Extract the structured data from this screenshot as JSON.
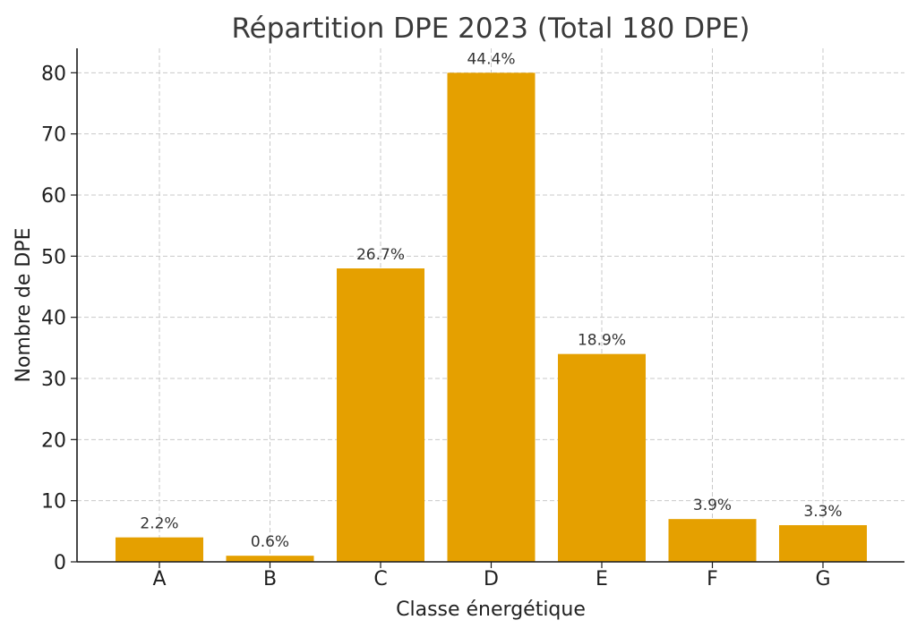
{
  "chart_data": {
    "type": "bar",
    "title": "Répartition DPE 2023 (Total 180 DPE)",
    "xlabel": "Classe énergétique",
    "ylabel": "Nombre de DPE",
    "categories": [
      "A",
      "B",
      "C",
      "D",
      "E",
      "F",
      "G"
    ],
    "values": [
      4,
      1,
      48,
      80,
      34,
      7,
      6
    ],
    "data_labels": [
      "2.2%",
      "0.6%",
      "26.7%",
      "44.4%",
      "18.9%",
      "3.9%",
      "3.3%"
    ],
    "ylim": [
      0,
      84
    ],
    "yticks": [
      0,
      10,
      20,
      30,
      40,
      50,
      60,
      70,
      80
    ],
    "grid": true,
    "bar_color": "#E5A000"
  }
}
